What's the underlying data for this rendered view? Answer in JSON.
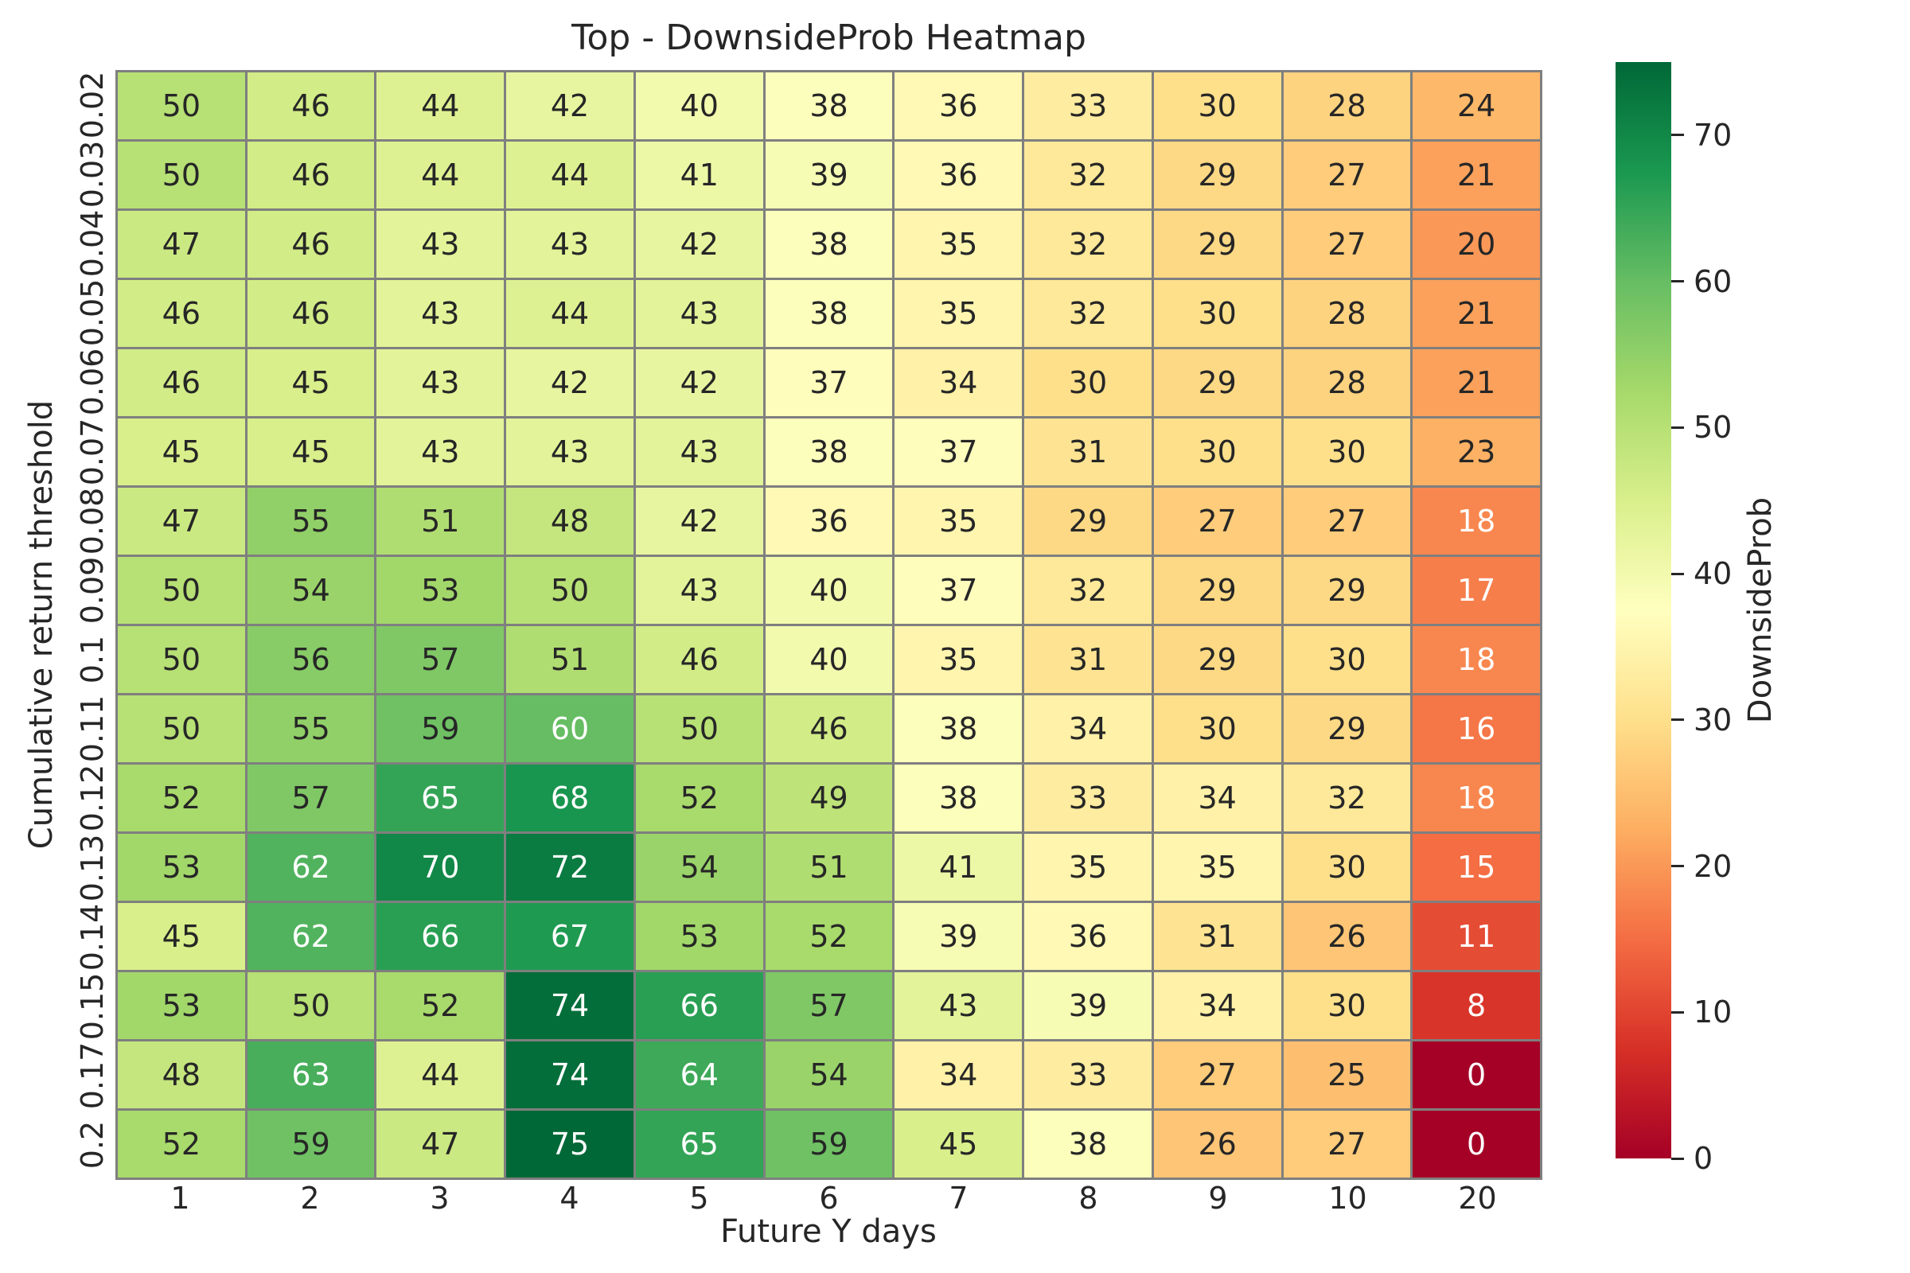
{
  "title": "Top - DownsideProb Heatmap",
  "chart_data": {
    "type": "heatmap",
    "title": "Top - DownsideProb Heatmap",
    "xlabel": "Future Y days",
    "ylabel": "Cumulative return threshold",
    "x_ticks": [
      "1",
      "2",
      "3",
      "4",
      "5",
      "6",
      "7",
      "8",
      "9",
      "10",
      "20"
    ],
    "y_ticks": [
      "0.02",
      "0.03",
      "0.04",
      "0.05",
      "0.06",
      "0.07",
      "0.08",
      "0.09",
      "0.1",
      "0.11",
      "0.12",
      "0.13",
      "0.14",
      "0.15",
      "0.17",
      "0.2"
    ],
    "values": [
      [
        50,
        46,
        44,
        42,
        40,
        38,
        36,
        33,
        30,
        28,
        24
      ],
      [
        50,
        46,
        44,
        44,
        41,
        39,
        36,
        32,
        29,
        27,
        21
      ],
      [
        47,
        46,
        43,
        43,
        42,
        38,
        35,
        32,
        29,
        27,
        20
      ],
      [
        46,
        46,
        43,
        44,
        43,
        38,
        35,
        32,
        30,
        28,
        21
      ],
      [
        46,
        45,
        43,
        42,
        42,
        37,
        34,
        30,
        29,
        28,
        21
      ],
      [
        45,
        45,
        43,
        43,
        43,
        38,
        37,
        31,
        30,
        30,
        23
      ],
      [
        47,
        55,
        51,
        48,
        42,
        36,
        35,
        29,
        27,
        27,
        18
      ],
      [
        50,
        54,
        53,
        50,
        43,
        40,
        37,
        32,
        29,
        29,
        17
      ],
      [
        50,
        56,
        57,
        51,
        46,
        40,
        35,
        31,
        29,
        30,
        18
      ],
      [
        50,
        55,
        59,
        60,
        50,
        46,
        38,
        34,
        30,
        29,
        16
      ],
      [
        52,
        57,
        65,
        68,
        52,
        49,
        38,
        33,
        34,
        32,
        18
      ],
      [
        53,
        62,
        70,
        72,
        54,
        51,
        41,
        35,
        35,
        30,
        15
      ],
      [
        45,
        62,
        66,
        67,
        53,
        52,
        39,
        36,
        31,
        26,
        11
      ],
      [
        53,
        50,
        52,
        74,
        66,
        57,
        43,
        39,
        34,
        30,
        8
      ],
      [
        48,
        63,
        44,
        74,
        64,
        54,
        34,
        33,
        27,
        25,
        0
      ],
      [
        52,
        59,
        47,
        75,
        65,
        59,
        45,
        38,
        26,
        27,
        0
      ]
    ],
    "colorbar": {
      "label": "DownsideProb",
      "ticks": [
        0,
        10,
        20,
        30,
        40,
        50,
        60,
        70
      ],
      "vmin": 0,
      "vmax": 75,
      "colormap": "RdYlGn"
    },
    "colormap_stops": [
      "#a50026",
      "#d73027",
      "#f46d43",
      "#fdae61",
      "#fee08b",
      "#ffffbf",
      "#d9ef8b",
      "#a6d96a",
      "#66bd63",
      "#1a9850",
      "#006837"
    ],
    "style": {
      "line_color": "#7f7f7f",
      "dark_text": "#262626",
      "light_text": "#ffffff",
      "luminance_threshold": 0.408
    },
    "legend_position": "right-colorbar",
    "grid": "cell-borders"
  }
}
